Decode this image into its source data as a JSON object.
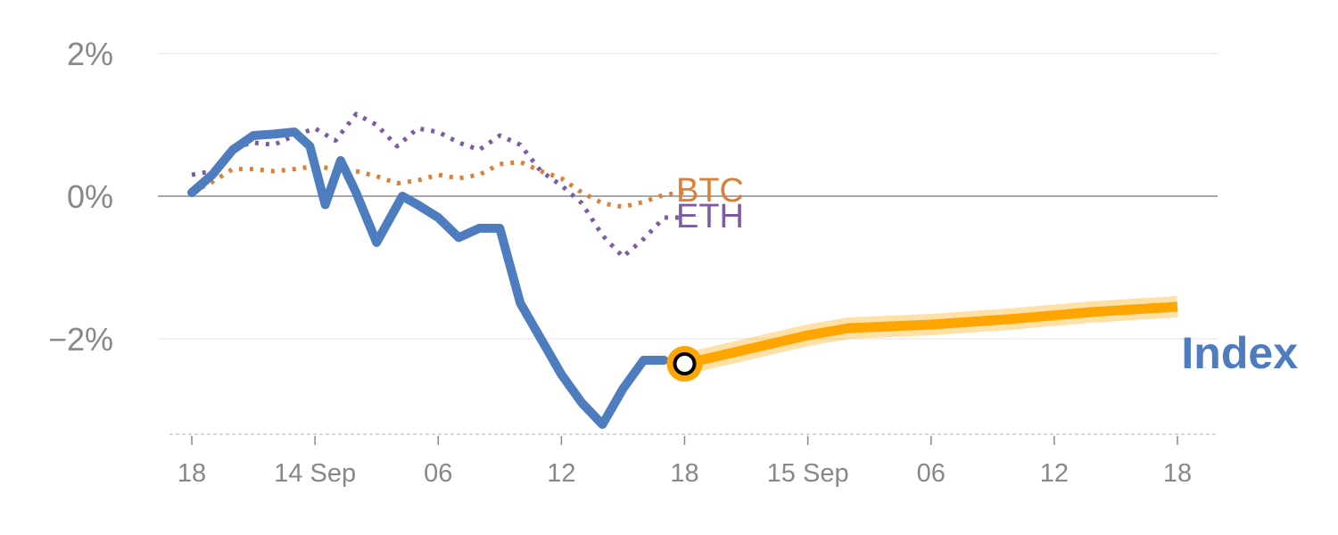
{
  "chart_data": {
    "type": "line",
    "y_unit": "%",
    "ylim": [
      -3.35,
      2.3
    ],
    "yticks": [
      {
        "value": 2,
        "label": "2%"
      },
      {
        "value": 0,
        "label": "0%"
      },
      {
        "value": -2,
        "label": "−2%"
      }
    ],
    "xticks": [
      {
        "x": 0,
        "label": "18"
      },
      {
        "x": 6,
        "label": "14 Sep"
      },
      {
        "x": 12,
        "label": "06"
      },
      {
        "x": 18,
        "label": "12"
      },
      {
        "x": 24,
        "label": "18"
      },
      {
        "x": 30,
        "label": "15 Sep"
      },
      {
        "x": 36,
        "label": "06"
      },
      {
        "x": 42,
        "label": "12"
      },
      {
        "x": 48,
        "label": "18"
      }
    ],
    "xlim": [
      -1,
      50
    ],
    "series": [
      {
        "name": "BTC",
        "color": "#dc7f37",
        "style": "dotted",
        "x": [
          0,
          1,
          2,
          3,
          4,
          5,
          6,
          7,
          8,
          9,
          10,
          11,
          12,
          13,
          14,
          15,
          16,
          17,
          18,
          19,
          20,
          21,
          22,
          23,
          24
        ],
        "y": [
          0.05,
          0.2,
          0.38,
          0.38,
          0.35,
          0.38,
          0.42,
          0.38,
          0.35,
          0.28,
          0.18,
          0.22,
          0.3,
          0.25,
          0.3,
          0.45,
          0.48,
          0.35,
          0.25,
          0.05,
          -0.1,
          -0.15,
          -0.08,
          0.02,
          0.05
        ]
      },
      {
        "name": "ETH",
        "color": "#7e5ba1",
        "style": "dotted",
        "x": [
          0,
          1,
          2,
          3,
          4,
          5,
          6,
          7,
          8,
          9,
          10,
          11,
          12,
          13,
          14,
          15,
          16,
          17,
          18,
          19,
          20,
          21,
          22,
          23,
          24
        ],
        "y": [
          0.3,
          0.35,
          0.68,
          0.75,
          0.72,
          0.85,
          0.95,
          0.78,
          1.15,
          1.0,
          0.7,
          0.95,
          0.9,
          0.75,
          0.65,
          0.85,
          0.72,
          0.35,
          0.15,
          -0.1,
          -0.55,
          -0.85,
          -0.6,
          -0.3,
          -0.3
        ]
      },
      {
        "name": "Index",
        "color": "#4d7cbf",
        "style": "solid",
        "x": [
          0,
          1,
          2,
          3,
          4,
          5,
          5.75,
          6.5,
          7.25,
          8,
          9,
          10.25,
          11,
          12,
          13,
          14,
          15,
          16,
          17,
          18,
          19,
          20,
          21,
          22,
          23
        ],
        "y": [
          0.05,
          0.3,
          0.65,
          0.85,
          0.87,
          0.9,
          0.7,
          -0.12,
          0.5,
          0.05,
          -0.65,
          0.0,
          -0.12,
          -0.3,
          -0.58,
          -0.45,
          -0.45,
          -1.5,
          -2.0,
          -2.5,
          -2.9,
          -3.2,
          -2.7,
          -2.3,
          -2.3
        ]
      },
      {
        "name": "Index",
        "color": "#ffa500",
        "style": "forecast",
        "x": [
          24,
          27,
          30,
          32,
          36,
          40,
          44,
          48
        ],
        "y": [
          -2.35,
          -2.15,
          -1.95,
          -1.85,
          -1.8,
          -1.72,
          -1.62,
          -1.55
        ]
      }
    ],
    "marker": {
      "x": 24,
      "y": -2.35
    },
    "labels": {
      "btc": "BTC",
      "eth": "ETH",
      "index": "Index"
    }
  }
}
